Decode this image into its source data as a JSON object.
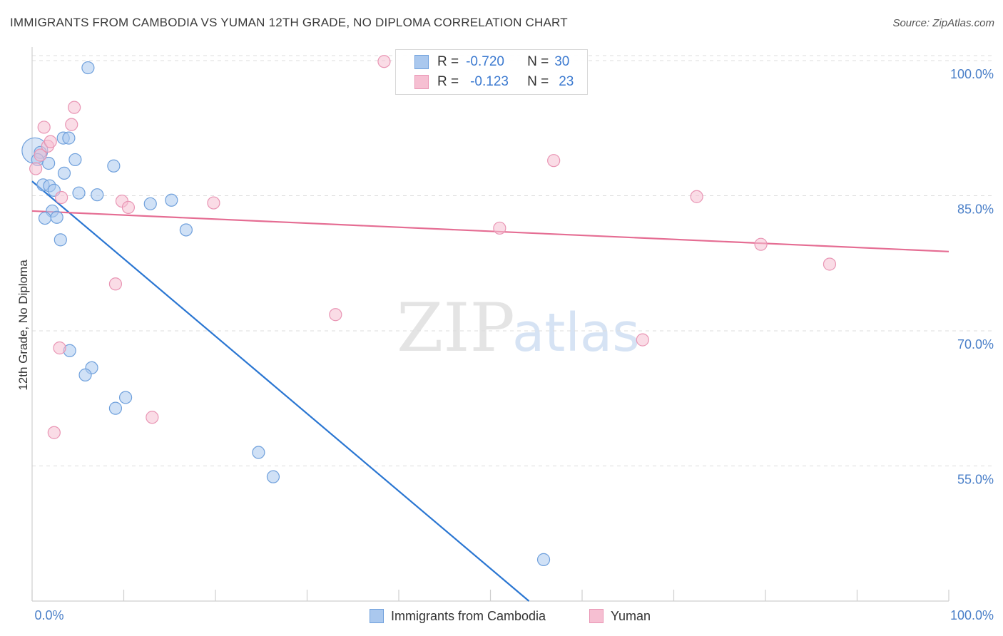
{
  "header": {
    "title": "IMMIGRANTS FROM CAMBODIA VS YUMAN 12TH GRADE, NO DIPLOMA CORRELATION CHART",
    "source": "Source: ZipAtlas.com"
  },
  "watermark": {
    "zip": "ZIP",
    "atlas": "atlas"
  },
  "legend": {
    "rows": [
      {
        "r_label": "R =",
        "r_value": "-0.720",
        "n_label": "N =",
        "n_value": "30"
      },
      {
        "r_label": "R =",
        "r_value": "-0.123",
        "n_label": "N =",
        "n_value": "23"
      }
    ]
  },
  "bottom_legend": {
    "series1": "Immigrants from Cambodia",
    "series2": "Yuman"
  },
  "colors": {
    "blue_fill": "#aac8ee",
    "blue_stroke": "#6fa0dc",
    "blue_line": "#2a76d2",
    "pink_fill": "#f6bfd2",
    "pink_stroke": "#e995b4",
    "pink_line": "#e56d93",
    "tick_text": "#4a7fc8",
    "grid": "#dddddd"
  },
  "chart_data": {
    "type": "scatter",
    "title": "IMMIGRANTS FROM CAMBODIA VS YUMAN 12TH GRADE, NO DIPLOMA CORRELATION CHART",
    "xlabel": "",
    "ylabel": "12th Grade, No Diploma",
    "xlim": [
      0,
      100
    ],
    "ylim": [
      40,
      101.5
    ],
    "x_tick_labels": [
      "0.0%",
      "100.0%"
    ],
    "y_ticks": [
      100,
      85,
      70,
      55
    ],
    "y_tick_labels": [
      "100.0%",
      "85.0%",
      "70.0%",
      "55.0%"
    ],
    "grid": true,
    "legend_position": "top-center",
    "series": [
      {
        "name": "Immigrants from Cambodia",
        "color": "blue",
        "r": -0.72,
        "n": 30,
        "points": [
          {
            "x": 0.3,
            "y": 90.0,
            "big": true
          },
          {
            "x": 0.9,
            "y": 89.8
          },
          {
            "x": 0.6,
            "y": 89.0
          },
          {
            "x": 1.8,
            "y": 88.6
          },
          {
            "x": 1.2,
            "y": 86.2
          },
          {
            "x": 1.9,
            "y": 86.1
          },
          {
            "x": 2.4,
            "y": 85.6
          },
          {
            "x": 2.2,
            "y": 83.3
          },
          {
            "x": 1.4,
            "y": 82.5
          },
          {
            "x": 2.7,
            "y": 82.6
          },
          {
            "x": 3.1,
            "y": 80.1
          },
          {
            "x": 3.4,
            "y": 91.4
          },
          {
            "x": 4.0,
            "y": 91.4
          },
          {
            "x": 3.5,
            "y": 87.5
          },
          {
            "x": 4.7,
            "y": 89.0
          },
          {
            "x": 5.1,
            "y": 85.3
          },
          {
            "x": 7.1,
            "y": 85.1
          },
          {
            "x": 8.9,
            "y": 88.3
          },
          {
            "x": 12.9,
            "y": 84.1
          },
          {
            "x": 15.2,
            "y": 84.5
          },
          {
            "x": 16.8,
            "y": 81.2
          },
          {
            "x": 6.1,
            "y": 99.2
          },
          {
            "x": 4.1,
            "y": 67.8
          },
          {
            "x": 6.5,
            "y": 65.9
          },
          {
            "x": 5.8,
            "y": 65.1
          },
          {
            "x": 10.2,
            "y": 62.6
          },
          {
            "x": 9.1,
            "y": 61.4
          },
          {
            "x": 24.7,
            "y": 56.5
          },
          {
            "x": 26.3,
            "y": 53.8
          },
          {
            "x": 55.8,
            "y": 44.6
          }
        ],
        "trend": {
          "x": [
            0,
            54.2
          ],
          "y": [
            86.6,
            40.0
          ]
        }
      },
      {
        "name": "Yuman",
        "color": "pink",
        "r": -0.123,
        "n": 23,
        "points": [
          {
            "x": 0.4,
            "y": 88.0
          },
          {
            "x": 0.9,
            "y": 89.5
          },
          {
            "x": 1.3,
            "y": 92.6
          },
          {
            "x": 1.7,
            "y": 90.5
          },
          {
            "x": 2.0,
            "y": 91.0
          },
          {
            "x": 3.2,
            "y": 84.8
          },
          {
            "x": 4.3,
            "y": 92.9
          },
          {
            "x": 4.6,
            "y": 94.8
          },
          {
            "x": 9.8,
            "y": 84.4
          },
          {
            "x": 10.5,
            "y": 83.7
          },
          {
            "x": 19.8,
            "y": 84.2
          },
          {
            "x": 9.1,
            "y": 75.2
          },
          {
            "x": 3.0,
            "y": 68.1
          },
          {
            "x": 13.1,
            "y": 60.4
          },
          {
            "x": 2.4,
            "y": 58.7
          },
          {
            "x": 33.1,
            "y": 71.8
          },
          {
            "x": 38.4,
            "y": 99.9
          },
          {
            "x": 51.0,
            "y": 81.4
          },
          {
            "x": 56.9,
            "y": 88.9
          },
          {
            "x": 66.6,
            "y": 69.0
          },
          {
            "x": 72.5,
            "y": 84.9
          },
          {
            "x": 79.5,
            "y": 79.6
          },
          {
            "x": 87.0,
            "y": 77.4
          }
        ],
        "trend": {
          "x": [
            0,
            100
          ],
          "y": [
            83.3,
            78.8
          ]
        }
      }
    ]
  }
}
